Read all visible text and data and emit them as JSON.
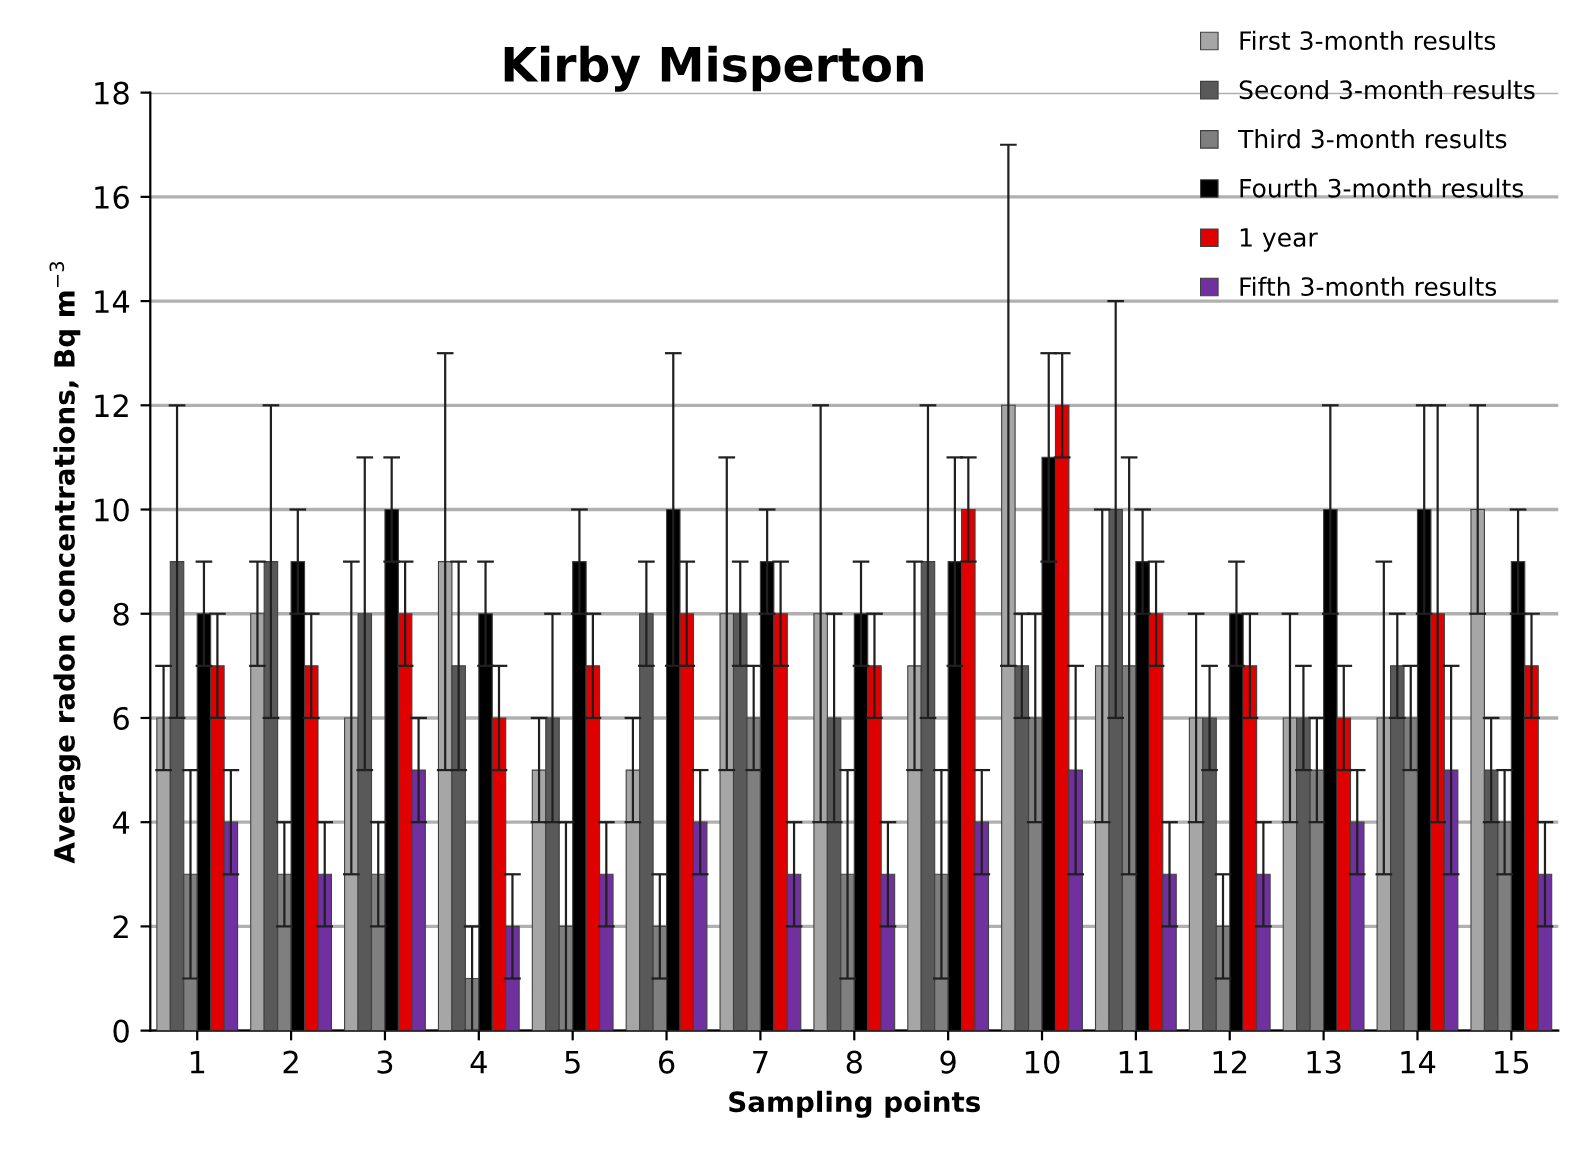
{
  "chart_data": {
    "type": "bar",
    "title": "Kirby Misperton",
    "xlabel": "Sampling points",
    "ylabel": "Average radon concentrations, Bq m$^{−3}$",
    "categories": [
      "1",
      "2",
      "3",
      "4",
      "5",
      "6",
      "7",
      "8",
      "9",
      "10",
      "11",
      "12",
      "13",
      "14",
      "15"
    ],
    "ylim": [
      0,
      18
    ],
    "yticks": [
      0,
      2,
      4,
      6,
      8,
      10,
      12,
      14,
      16,
      18
    ],
    "grid": "y",
    "legend": "top right",
    "series": [
      {
        "name": "First 3-month results",
        "color": "#a6a6a6",
        "values": [
          6,
          8,
          6,
          9,
          5,
          5,
          8,
          8,
          7,
          12,
          7,
          6,
          6,
          6,
          10
        ],
        "errors": [
          1,
          1,
          3,
          4,
          1,
          1,
          3,
          4,
          2,
          5,
          3,
          2,
          2,
          3,
          2
        ]
      },
      {
        "name": "Second 3-month results",
        "color": "#595959",
        "values": [
          9,
          9,
          8,
          7,
          6,
          8,
          8,
          6,
          9,
          7,
          10,
          6,
          6,
          7,
          5
        ],
        "errors": [
          3,
          3,
          3,
          2,
          2,
          1,
          1,
          2,
          3,
          1,
          4,
          1,
          1,
          1,
          1
        ]
      },
      {
        "name": "Third 3-month results",
        "color": "#7f7f7f",
        "values": [
          3,
          3,
          3,
          1,
          2,
          2,
          6,
          3,
          3,
          6,
          7,
          2,
          5,
          6,
          4
        ],
        "errors": [
          2,
          1,
          1,
          1,
          2,
          1,
          1,
          2,
          2,
          2,
          4,
          1,
          1,
          1,
          1
        ]
      },
      {
        "name": "Fourth 3-month results",
        "color": "#000000",
        "values": [
          8,
          9,
          10,
          8,
          9,
          10,
          9,
          8,
          9,
          11,
          9,
          8,
          10,
          10,
          9
        ],
        "errors": [
          1,
          1,
          1,
          1,
          1,
          3,
          1,
          1,
          2,
          2,
          1,
          1,
          2,
          2,
          1
        ]
      },
      {
        "name": "1 year",
        "color": "#e00000",
        "values": [
          7,
          7,
          8,
          6,
          7,
          8,
          8,
          7,
          10,
          12,
          8,
          7,
          6,
          8,
          7
        ],
        "errors": [
          1,
          1,
          1,
          1,
          1,
          1,
          1,
          1,
          1,
          1,
          1,
          1,
          1,
          4,
          1
        ]
      },
      {
        "name": "Fifth 3-month results",
        "color": "#7030a0",
        "values": [
          4,
          3,
          5,
          2,
          3,
          4,
          3,
          3,
          4,
          5,
          3,
          3,
          4,
          5,
          3
        ],
        "errors": [
          1,
          1,
          1,
          1,
          1,
          1,
          1,
          1,
          1,
          2,
          1,
          1,
          1,
          2,
          1
        ]
      }
    ]
  }
}
